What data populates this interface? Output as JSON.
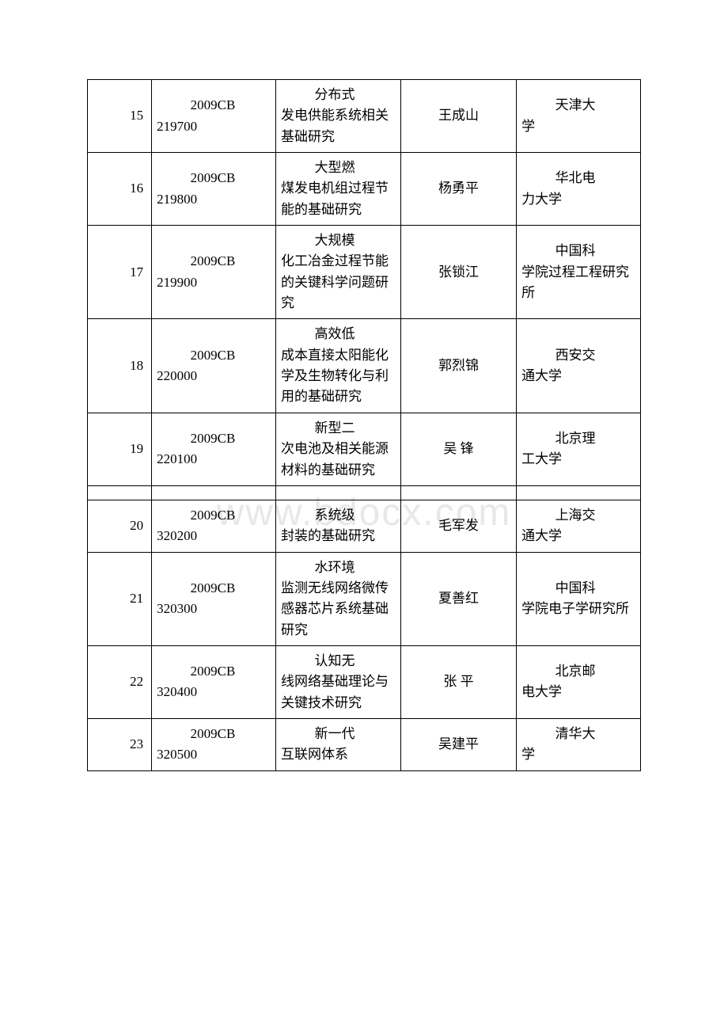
{
  "watermark": "www.bdocx.com",
  "rows": [
    {
      "num": "15",
      "code1": "2009CB",
      "code2": "219700",
      "title_first": "分布式",
      "title_rest": "发电供能系统相关基础研究",
      "person": "王成山",
      "org_first": "天津大",
      "org_rest": "学"
    },
    {
      "num": "16",
      "code1": "2009CB",
      "code2": "219800",
      "title_first": "大型燃",
      "title_rest": "煤发电机组过程节能的基础研究",
      "person": "杨勇平",
      "org_first": "华北电",
      "org_rest": "力大学"
    },
    {
      "num": "17",
      "code1": "2009CB",
      "code2": "219900",
      "title_first": "大规模",
      "title_rest": "化工冶金过程节能的关键科学问题研究",
      "person": "张锁江",
      "org_first": "中国科",
      "org_rest": "学院过程工程研究所"
    },
    {
      "num": "18",
      "code1": "2009CB",
      "code2": "220000",
      "title_first": "高效低",
      "title_rest": "成本直接太阳能化学及生物转化与利用的基础研究",
      "person": "郭烈锦",
      "org_first": "西安交",
      "org_rest": "通大学"
    },
    {
      "num": "19",
      "code1": "2009CB",
      "code2": "220100",
      "title_first": "新型二",
      "title_rest": "次电池及相关能源材料的基础研究",
      "person": "吴 锋",
      "org_first": "北京理",
      "org_rest": "工大学"
    },
    {
      "gap": true
    },
    {
      "num": "20",
      "code1": "2009CB",
      "code2": "320200",
      "title_first": "系统级",
      "title_rest": "封装的基础研究",
      "person": "毛军发",
      "org_first": "上海交",
      "org_rest": "通大学"
    },
    {
      "num": "21",
      "code1": "2009CB",
      "code2": "320300",
      "title_first": "水环境",
      "title_rest": "监测无线网络微传感器芯片系统基础研究",
      "person": "夏善红",
      "org_first": "中国科",
      "org_rest": "学院电子学研究所"
    },
    {
      "num": "22",
      "code1": "2009CB",
      "code2": "320400",
      "title_first": "认知无",
      "title_rest": "线网络基础理论与关键技术研究",
      "person": "张 平",
      "org_first": "北京邮",
      "org_rest": "电大学"
    },
    {
      "num": "23",
      "code1": "2009CB",
      "code2": "320500",
      "title_first": "新一代",
      "title_rest": "互联网体系",
      "person": "吴建平",
      "org_first": "清华大",
      "org_rest": "学"
    }
  ]
}
